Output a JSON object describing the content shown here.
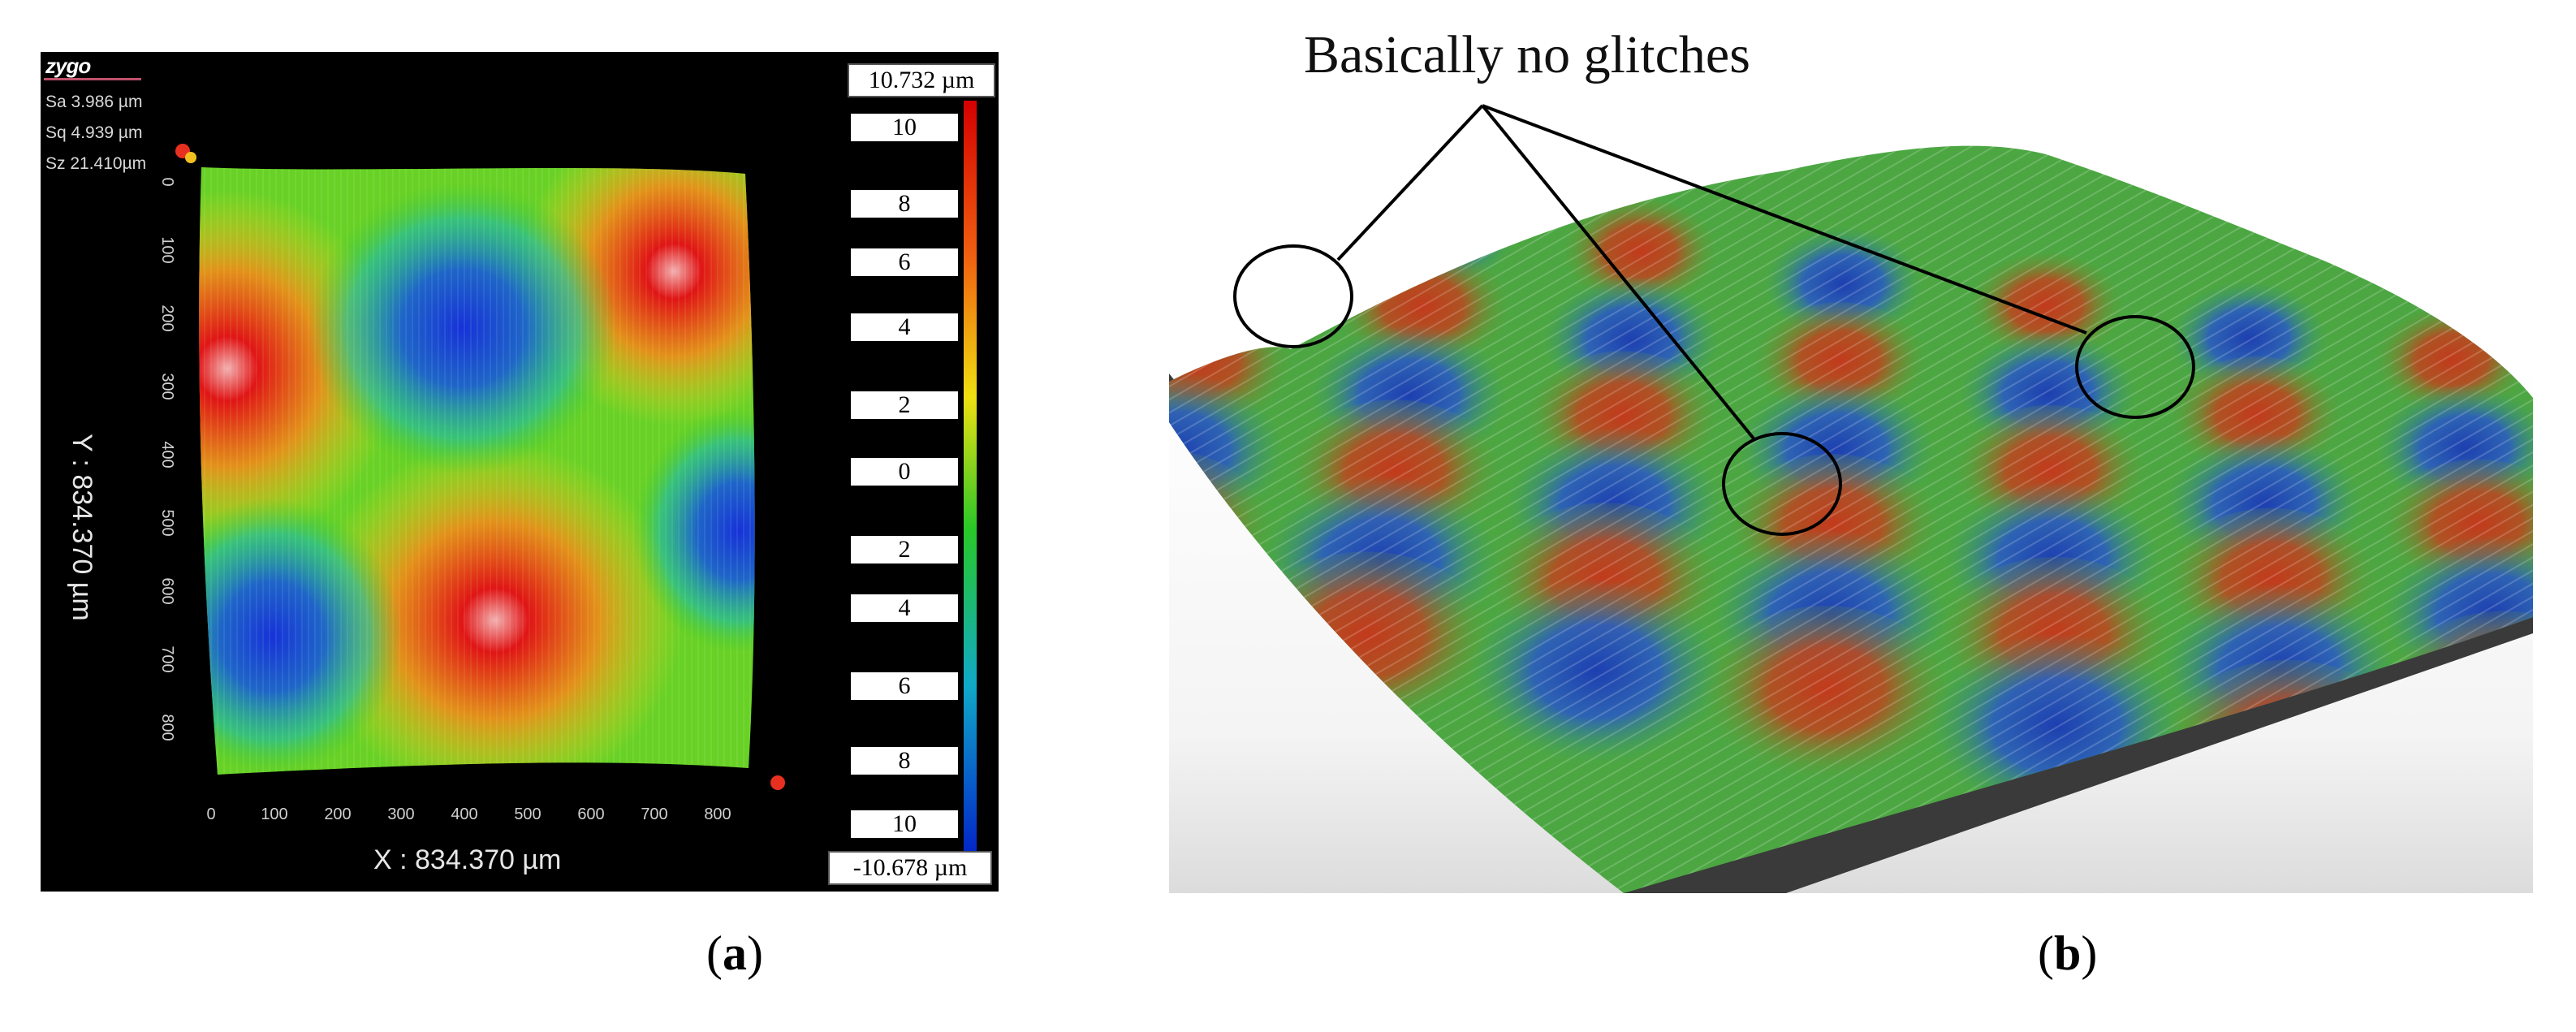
{
  "panel_a": {
    "brand": "zygo",
    "stats": {
      "sa": "Sa 3.986  µm",
      "sq": "Sq 4.939  µm",
      "sz": "Sz 21.410µm"
    },
    "y_axis_title": "Y : 834.370 µm",
    "x_axis_title": "X : 834.370 µm",
    "x_ticks": [
      "0",
      "100",
      "200",
      "300",
      "400",
      "500",
      "600",
      "700",
      "800"
    ],
    "y_ticks": [
      "0",
      "100",
      "200",
      "300",
      "400",
      "500",
      "600",
      "700",
      "800"
    ],
    "colorbar": {
      "max_label": "10.732 µm",
      "min_label": "-10.678 µm",
      "ticks": [
        "10",
        "8",
        "6",
        "4",
        "2",
        "0",
        "2",
        "4",
        "6",
        "8",
        "10"
      ]
    },
    "colors": {
      "red": "#e11818",
      "green": "#2fc72a",
      "blue": "#1838d6",
      "yellow": "#f0e21a"
    }
  },
  "panel_b": {
    "annotation": "Basically no glitches"
  },
  "captions": {
    "a": "a",
    "b": "b"
  }
}
